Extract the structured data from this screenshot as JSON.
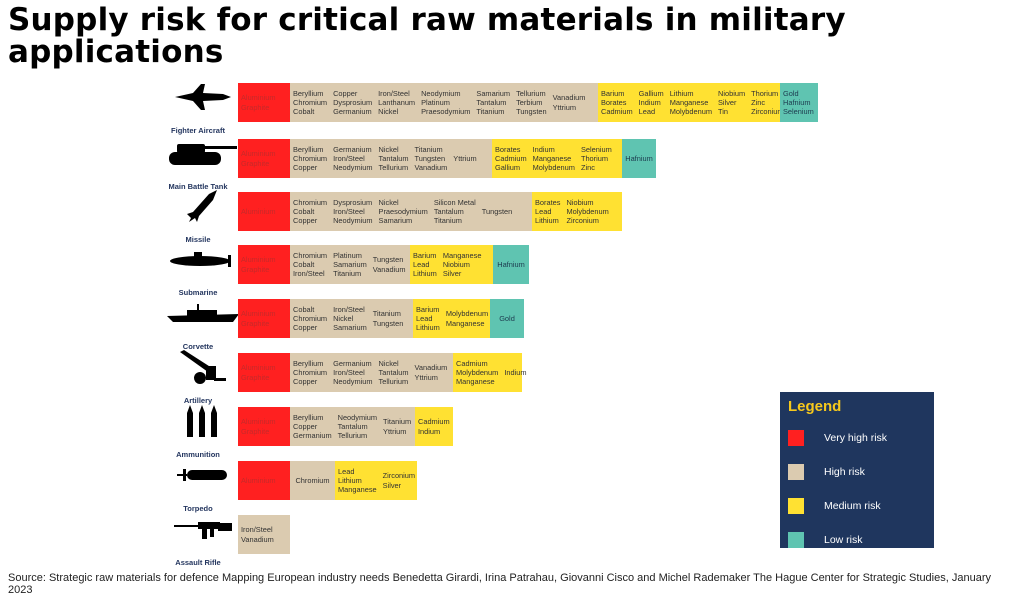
{
  "title": "Supply risk for critical raw materials in military applications",
  "source": "Source:  Strategic raw materials for defence Mapping European industry needs Benedetta Girardi, Irina Patrahau, Giovanni Cisco and Michel Rademaker The Hague Center for Strategic Studies, January 2023",
  "legend": {
    "title": "Legend",
    "items": [
      {
        "label": "Very high risk",
        "color": "#ff2020"
      },
      {
        "label": "High risk",
        "color": "#dbcbb0"
      },
      {
        "label": "Medium risk",
        "color": "#ffe132"
      },
      {
        "label": "Low risk",
        "color": "#5fc4b1"
      }
    ]
  },
  "chart_data": {
    "type": "table",
    "rows": [
      {
        "vehicle": "Fighter Aircraft",
        "icon": "fighter-jet-icon",
        "segments": [
          {
            "risk": "Very high risk",
            "columns": [
              [
                "Aluminium",
                "Graphite"
              ]
            ]
          },
          {
            "risk": "High risk",
            "columns": [
              [
                "Beryllium",
                "Chromium",
                "Cobalt"
              ],
              [
                "Copper",
                "Dysprosium",
                "Germanium"
              ],
              [
                "Iron/Steel",
                "Lanthanum",
                "Nickel"
              ],
              [
                "Neodymium",
                "Platinum",
                "Praesodymium"
              ],
              [
                "Samarium",
                "Tantalum",
                "Titanium"
              ],
              [
                "Tellurium",
                "Terbium",
                "Tungsten"
              ],
              [
                "Vanadium",
                "Yttrium"
              ]
            ]
          },
          {
            "risk": "Medium risk",
            "columns": [
              [
                "Barium",
                "Borates",
                "Cadmium"
              ],
              [
                "Gallium",
                "Indium",
                "Lead"
              ],
              [
                "Lithium",
                "Manganese",
                "Molybdenum"
              ],
              [
                "Niobium",
                "Silver",
                "Tin"
              ],
              [
                "Thorium",
                "Zinc",
                "Zirconium"
              ]
            ]
          },
          {
            "risk": "Low risk",
            "columns": [
              [
                "Gold",
                "Hafnium",
                "Selenium"
              ]
            ]
          }
        ]
      },
      {
        "vehicle": "Main Battle Tank",
        "icon": "tank-icon",
        "segments": [
          {
            "risk": "Very high risk",
            "columns": [
              [
                "Aluminium",
                "Graphite"
              ]
            ]
          },
          {
            "risk": "High risk",
            "columns": [
              [
                "Beryllium",
                "Chromium",
                "Copper"
              ],
              [
                "Germanium",
                "Iron/Steel",
                "Neodymium"
              ],
              [
                "Nickel",
                "Tantalum",
                "Tellurium"
              ],
              [
                "Titanium",
                "Tungsten",
                "Vanadium"
              ],
              [
                "Yttrium"
              ]
            ]
          },
          {
            "risk": "Medium risk",
            "columns": [
              [
                "Borates",
                "Cadmium",
                "Gallium"
              ],
              [
                "Indium",
                "Manganese",
                "Molybdenum"
              ],
              [
                "Selenium",
                "Thorium",
                "Zinc"
              ]
            ]
          },
          {
            "risk": "Low risk",
            "columns": [
              [
                "Hafnium"
              ]
            ]
          }
        ]
      },
      {
        "vehicle": "Missile",
        "icon": "missile-icon",
        "segments": [
          {
            "risk": "Very high risk",
            "columns": [
              [
                "Aluminium"
              ]
            ]
          },
          {
            "risk": "High risk",
            "columns": [
              [
                "Chromium",
                "Cobalt",
                "Copper"
              ],
              [
                "Dysprosium",
                "Iron/Steel",
                "Neodymium"
              ],
              [
                "Nickel",
                "Praesodymium",
                "Samarium"
              ],
              [
                "Silicon Metal",
                "Tantalum",
                "Titanium"
              ],
              [
                "Tungsten"
              ]
            ]
          },
          {
            "risk": "Medium risk",
            "columns": [
              [
                "Borates",
                "Lead",
                "Lithium"
              ],
              [
                "Niobium",
                "Molybdenum",
                "Zirconium"
              ]
            ]
          }
        ]
      },
      {
        "vehicle": "Submarine",
        "icon": "submarine-icon",
        "segments": [
          {
            "risk": "Very high risk",
            "columns": [
              [
                "Aluminium",
                "Graphite"
              ]
            ]
          },
          {
            "risk": "High risk",
            "columns": [
              [
                "Chromium",
                "Cobalt",
                "Iron/Steel"
              ],
              [
                "Platinum",
                "Samarium",
                "Titanium"
              ],
              [
                "Tungsten",
                "Vanadium"
              ]
            ]
          },
          {
            "risk": "Medium risk",
            "columns": [
              [
                "Barium",
                "Lead",
                "Lithium"
              ],
              [
                "Manganese",
                "Niobium",
                "Silver"
              ]
            ]
          },
          {
            "risk": "Low risk",
            "columns": [
              [
                "Hafnium"
              ]
            ]
          }
        ]
      },
      {
        "vehicle": "Corvette",
        "icon": "corvette-icon",
        "segments": [
          {
            "risk": "Very high risk",
            "columns": [
              [
                "Aluminium",
                "Graphite"
              ]
            ]
          },
          {
            "risk": "High risk",
            "columns": [
              [
                "Cobalt",
                "Chromium",
                "Copper"
              ],
              [
                "Iron/Steel",
                "Nickel",
                "Samarium"
              ],
              [
                "Titanium",
                "Tungsten"
              ]
            ]
          },
          {
            "risk": "Medium risk",
            "columns": [
              [
                "Barium",
                "Lead",
                "Lithium"
              ],
              [
                "Molybdenum",
                "Manganese"
              ]
            ]
          },
          {
            "risk": "Low risk",
            "columns": [
              [
                "Gold"
              ]
            ]
          }
        ]
      },
      {
        "vehicle": "Artillery",
        "icon": "artillery-icon",
        "segments": [
          {
            "risk": "Very high risk",
            "columns": [
              [
                "Aluminium",
                "Graphite"
              ]
            ]
          },
          {
            "risk": "High risk",
            "columns": [
              [
                "Beryllium",
                "Chromium",
                "Copper"
              ],
              [
                "Germanium",
                "Iron/Steel",
                "Neodymium"
              ],
              [
                "Nickel",
                "Tantalum",
                "Tellurium"
              ],
              [
                "Vanadium",
                "Yttrium"
              ]
            ]
          },
          {
            "risk": "Medium risk",
            "columns": [
              [
                "Cadmium",
                "Molybdenum",
                "Manganese"
              ],
              [
                "Indium"
              ]
            ]
          }
        ]
      },
      {
        "vehicle": "Ammunition",
        "icon": "ammunition-icon",
        "segments": [
          {
            "risk": "Very high risk",
            "columns": [
              [
                "Aluminium",
                "Graphite"
              ]
            ]
          },
          {
            "risk": "High risk",
            "columns": [
              [
                "Beryllium",
                "Copper",
                "Germanium"
              ],
              [
                "Neodymium",
                "Tantalum",
                "Tellurium"
              ],
              [
                "Titanium",
                "Yttrium"
              ]
            ]
          },
          {
            "risk": "Medium risk",
            "columns": [
              [
                "Cadmium",
                "Indium"
              ]
            ]
          }
        ]
      },
      {
        "vehicle": "Torpedo",
        "icon": "torpedo-icon",
        "segments": [
          {
            "risk": "Very high risk",
            "columns": [
              [
                "Aluminium"
              ]
            ]
          },
          {
            "risk": "High risk",
            "columns": [
              [
                "Chromium"
              ]
            ]
          },
          {
            "risk": "Medium risk",
            "columns": [
              [
                "Lead",
                "Lithium",
                "Manganese"
              ],
              [
                "Zirconium",
                "Silver"
              ]
            ]
          }
        ]
      },
      {
        "vehicle": "Assault Rifle",
        "icon": "assault-rifle-icon",
        "segments": [
          {
            "risk": "High risk",
            "columns": [
              [
                "Iron/Steel",
                "Vanadium"
              ]
            ]
          }
        ]
      }
    ]
  }
}
